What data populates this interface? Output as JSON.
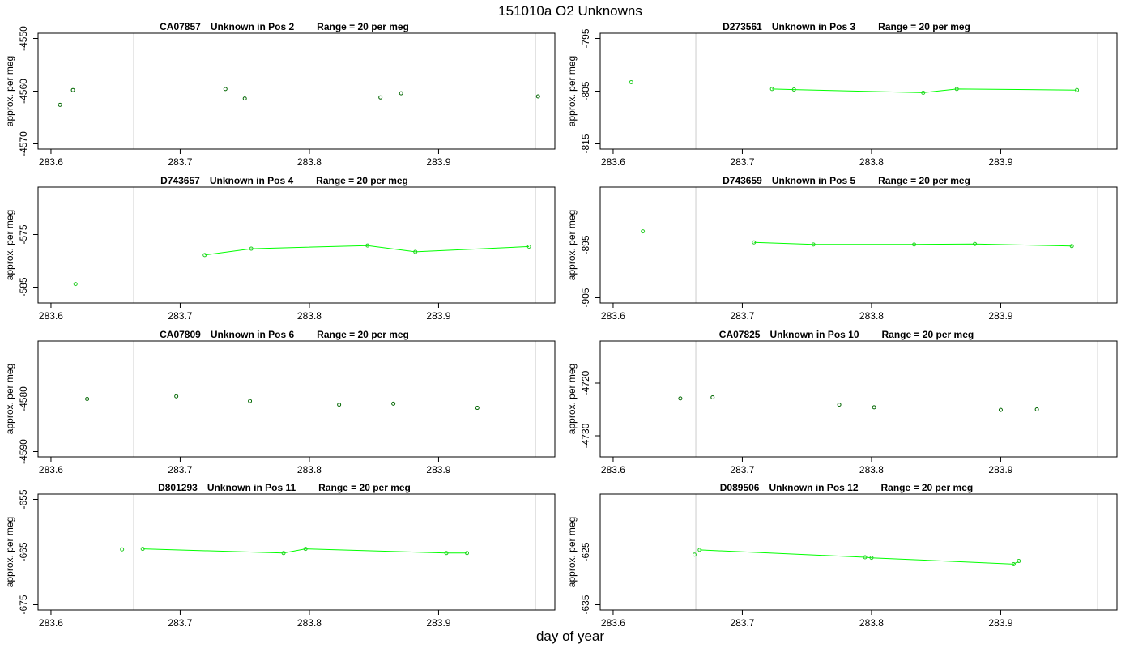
{
  "figure": {
    "title": "151010a  O2 Unknowns",
    "xlabel": "day of year",
    "ylabel": "approx. per meg"
  },
  "colors": {
    "line": "#00ff00",
    "point_green": "#22cc22",
    "point_dark": "#006600",
    "vline": "#cccccc",
    "frame": "#000000"
  },
  "chart_data": [
    {
      "type": "scatter",
      "title_id": "CA07857",
      "title_pos": "Unknown in Pos 2",
      "title_range": "Range = 20 per meg",
      "xlim": [
        283.59,
        283.99
      ],
      "ylim": [
        -4571,
        -4549
      ],
      "yticks": [
        -4550,
        -4560,
        -4570
      ],
      "xticks": [
        283.6,
        283.7,
        283.8,
        283.9
      ],
      "vlines": [
        283.664,
        283.975
      ],
      "connected": false,
      "x": [
        283.607,
        283.617,
        283.735,
        283.75,
        283.855,
        283.871,
        283.977
      ],
      "y": [
        -4562.6,
        -4559.8,
        -4559.6,
        -4561.4,
        -4561.2,
        -4560.4,
        -4561.0
      ]
    },
    {
      "type": "line",
      "title_id": "D273561",
      "title_pos": "Unknown in Pos 3",
      "title_range": "Range = 20 per meg",
      "xlim": [
        283.59,
        283.99
      ],
      "ylim": [
        -816,
        -794
      ],
      "yticks": [
        -795,
        -805,
        -815
      ],
      "xticks": [
        283.6,
        283.7,
        283.8,
        283.9
      ],
      "vlines": [
        283.664,
        283.975
      ],
      "connected": true,
      "x": [
        283.614,
        283.723,
        283.74,
        283.84,
        283.866,
        283.959
      ],
      "y": [
        -803.3,
        -804.6,
        -804.7,
        -805.3,
        -804.6,
        -804.8
      ]
    },
    {
      "type": "line",
      "title_id": "D743657",
      "title_pos": "Unknown in Pos 4",
      "title_range": "Range = 20 per meg",
      "xlim": [
        283.59,
        283.99
      ],
      "ylim": [
        -588,
        -566
      ],
      "yticks": [
        -575,
        -585
      ],
      "xticks": [
        283.6,
        283.7,
        283.8,
        283.9
      ],
      "vlines": [
        283.664,
        283.975
      ],
      "connected": true,
      "x": [
        283.619,
        283.719,
        283.755,
        283.845,
        283.882,
        283.97
      ],
      "y": [
        -584.4,
        -578.9,
        -577.7,
        -577.1,
        -578.3,
        -577.3
      ]
    },
    {
      "type": "line",
      "title_id": "D743659",
      "title_pos": "Unknown in Pos 5",
      "title_range": "Range = 20 per meg",
      "xlim": [
        283.59,
        283.99
      ],
      "ylim": [
        -906,
        -884
      ],
      "yticks": [
        -895,
        -905
      ],
      "xticks": [
        283.6,
        283.7,
        283.8,
        283.9
      ],
      "vlines": [
        283.664,
        283.975
      ],
      "connected": true,
      "x": [
        283.623,
        283.709,
        283.755,
        283.833,
        283.88,
        283.955
      ],
      "y": [
        -892.4,
        -894.5,
        -894.9,
        -894.9,
        -894.8,
        -895.2
      ]
    },
    {
      "type": "scatter",
      "title_id": "CA07809",
      "title_pos": "Unknown in Pos 6",
      "title_range": "Range = 20 per meg",
      "xlim": [
        283.59,
        283.99
      ],
      "ylim": [
        -4591,
        -4569
      ],
      "yticks": [
        -4580,
        -4590
      ],
      "xticks": [
        283.6,
        283.7,
        283.8,
        283.9
      ],
      "vlines": [
        283.664,
        283.975
      ],
      "connected": false,
      "x": [
        283.628,
        283.697,
        283.754,
        283.823,
        283.865,
        283.93
      ],
      "y": [
        -4580.0,
        -4579.5,
        -4580.4,
        -4581.1,
        -4580.9,
        -4581.7
      ]
    },
    {
      "type": "scatter",
      "title_id": "CA07825",
      "title_pos": "Unknown in Pos 10",
      "title_range": "Range = 20 per meg",
      "xlim": [
        283.59,
        283.99
      ],
      "ylim": [
        -4734,
        -4712
      ],
      "yticks": [
        -4720,
        -4730
      ],
      "xticks": [
        283.6,
        283.7,
        283.8,
        283.9
      ],
      "vlines": [
        283.664,
        283.975
      ],
      "connected": false,
      "x": [
        283.652,
        283.677,
        283.775,
        283.802,
        283.9,
        283.928
      ],
      "y": [
        -4722.9,
        -4722.7,
        -4724.1,
        -4724.6,
        -4725.1,
        -4725.0
      ]
    },
    {
      "type": "line",
      "title_id": "D801293",
      "title_pos": "Unknown in Pos 11",
      "title_range": "Range = 20 per meg",
      "xlim": [
        283.59,
        283.99
      ],
      "ylim": [
        -676,
        -654
      ],
      "yticks": [
        -655,
        -665,
        -675
      ],
      "xticks": [
        283.6,
        283.7,
        283.8,
        283.9
      ],
      "vlines": [
        283.664,
        283.975
      ],
      "connected": true,
      "x": [
        283.655,
        283.671,
        283.78,
        283.797,
        283.906,
        283.922
      ],
      "y": [
        -664.5,
        -664.4,
        -665.2,
        -664.4,
        -665.2,
        -665.2
      ]
    },
    {
      "type": "line",
      "title_id": "D089506",
      "title_pos": "Unknown in Pos 12",
      "title_range": "Range = 20 per meg",
      "xlim": [
        283.59,
        283.99
      ],
      "ylim": [
        -636,
        -614
      ],
      "yticks": [
        -625,
        -635
      ],
      "xticks": [
        283.6,
        283.7,
        283.8,
        283.9
      ],
      "vlines": [
        283.664,
        283.975
      ],
      "connected": true,
      "x": [
        283.663,
        283.667,
        283.795,
        283.8,
        283.91,
        283.914
      ],
      "y": [
        -625.5,
        -624.6,
        -626.0,
        -626.1,
        -627.3,
        -626.7
      ]
    }
  ]
}
